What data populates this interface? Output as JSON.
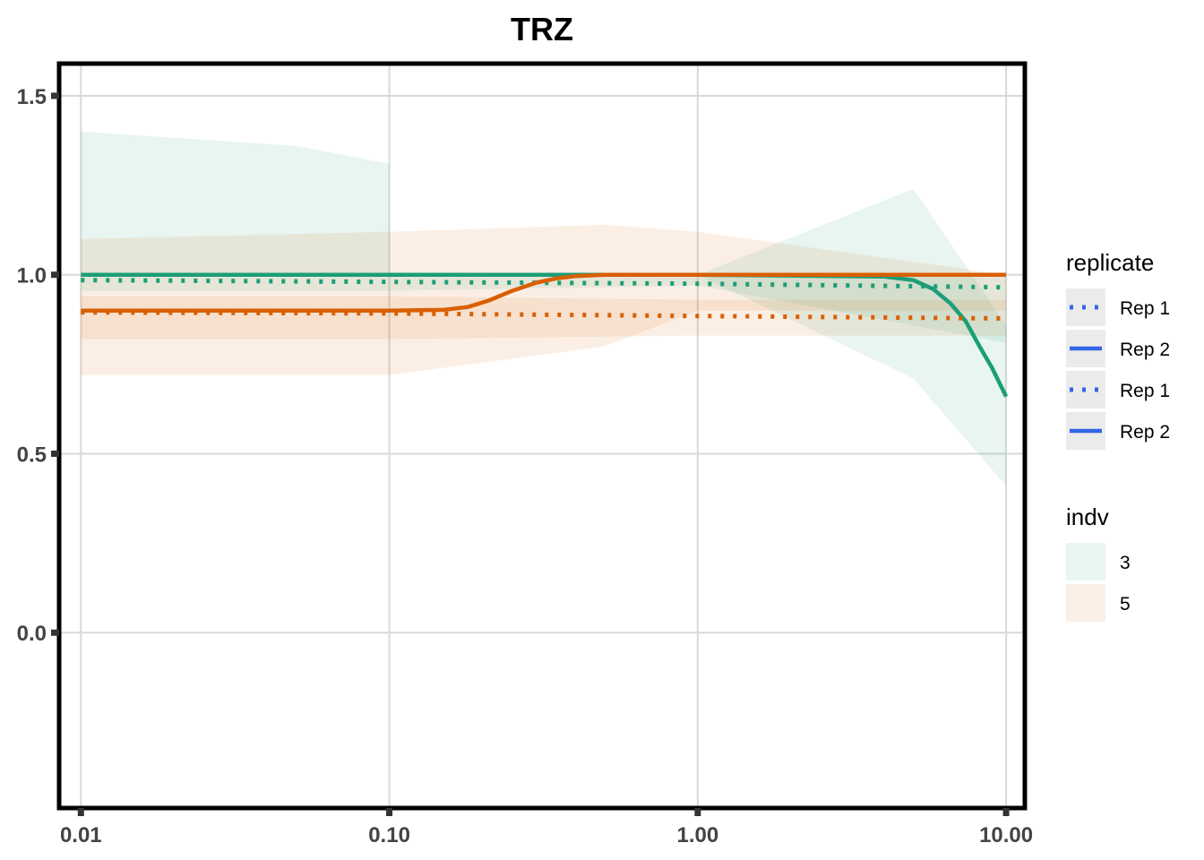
{
  "chart_data": {
    "type": "line",
    "title": "TRZ",
    "xlabel": "",
    "ylabel": "",
    "x_scale": "log10",
    "xlim": [
      0.0085,
      11.5
    ],
    "ylim": [
      -0.49,
      1.59
    ],
    "x_ticks": [
      0.01,
      0.1,
      1,
      10
    ],
    "x_tick_labels": [
      "0.01",
      "0.10",
      "1.00",
      "10.00"
    ],
    "y_ticks": [
      0,
      0.5,
      1,
      1.5
    ],
    "y_tick_labels": [
      "0.0",
      "0.5",
      "1.0",
      "1.5"
    ],
    "grid": true,
    "legend_position": "right",
    "colors": {
      "indv3": "#1b9e77",
      "indv5": "#d95f02",
      "legend_line": "#3366e6"
    },
    "legend": {
      "replicate": {
        "title": "replicate",
        "items": [
          {
            "label": "Rep 1",
            "linetype": "dotted"
          },
          {
            "label": "Rep 2",
            "linetype": "solid"
          },
          {
            "label": "Rep 1",
            "linetype": "dotted"
          },
          {
            "label": "Rep 2",
            "linetype": "solid"
          }
        ]
      },
      "indv": {
        "title": "indv",
        "items": [
          {
            "label": "3",
            "color": "#1b9e77"
          },
          {
            "label": "5",
            "color": "#d95f02"
          }
        ]
      }
    },
    "ribbons": [
      {
        "indv": "3",
        "replicate": "Rep 2",
        "x": [
          0.01,
          0.05,
          0.1
        ],
        "lower": [
          1.0,
          1.0,
          1.0
        ],
        "upper": [
          1.4,
          1.36,
          1.31
        ]
      },
      {
        "indv": "3",
        "replicate": "Rep 1",
        "x": [
          0.01,
          0.1,
          1,
          10
        ],
        "lower": [
          0.955,
          0.955,
          0.955,
          0.955
        ],
        "upper": [
          0.955,
          0.955,
          0.955,
          0.955
        ]
      },
      {
        "indv": "3",
        "replicate": "Rep 1",
        "x": [
          1,
          5,
          10
        ],
        "lower": [
          1.0,
          0.71,
          0.41
        ],
        "upper": [
          1.0,
          1.24,
          0.86
        ]
      },
      {
        "indv": "3",
        "replicate": "Rep 1",
        "x": [
          0.01,
          0.1,
          1,
          10
        ],
        "lower": [
          0.955,
          0.955,
          0.97,
          0.81
        ],
        "upper": [
          1.0,
          1.0,
          1.0,
          1.0
        ]
      },
      {
        "indv": "5",
        "replicate": "Rep 2",
        "x": [
          0.01,
          0.1,
          0.5,
          1,
          10
        ],
        "lower": [
          0.72,
          0.72,
          0.8,
          0.9,
          0.9
        ],
        "upper": [
          1.1,
          1.12,
          1.14,
          1.12,
          1.0
        ]
      },
      {
        "indv": "5",
        "replicate": "Rep 1",
        "x": [
          0.01,
          0.1,
          1,
          10
        ],
        "lower": [
          0.82,
          0.82,
          0.83,
          0.83
        ],
        "upper": [
          0.94,
          0.94,
          0.93,
          0.93
        ]
      }
    ],
    "series": [
      {
        "name": "Rep 1",
        "indv": "3",
        "linetype": "dotted",
        "x": [
          0.01,
          0.1,
          1,
          10
        ],
        "y": [
          0.985,
          0.98,
          0.975,
          0.965
        ]
      },
      {
        "name": "Rep 2",
        "indv": "3",
        "linetype": "solid",
        "x": [
          0.01,
          0.1,
          1,
          4,
          5,
          5.8,
          6.6,
          7.4,
          8.2,
          9,
          10
        ],
        "y": [
          1.0,
          1.0,
          1.0,
          0.995,
          0.985,
          0.96,
          0.92,
          0.87,
          0.8,
          0.74,
          0.66
        ]
      },
      {
        "name": "Rep 1",
        "indv": "5",
        "linetype": "dotted",
        "x": [
          0.01,
          0.1,
          1,
          10
        ],
        "y": [
          0.895,
          0.892,
          0.885,
          0.878
        ]
      },
      {
        "name": "Rep 2",
        "indv": "5",
        "linetype": "solid",
        "x": [
          0.01,
          0.1,
          0.15,
          0.18,
          0.21,
          0.25,
          0.3,
          0.35,
          0.4,
          0.5,
          1,
          10
        ],
        "y": [
          0.9,
          0.9,
          0.902,
          0.91,
          0.928,
          0.955,
          0.978,
          0.99,
          0.996,
          1.0,
          1.0,
          1.0
        ]
      }
    ]
  }
}
